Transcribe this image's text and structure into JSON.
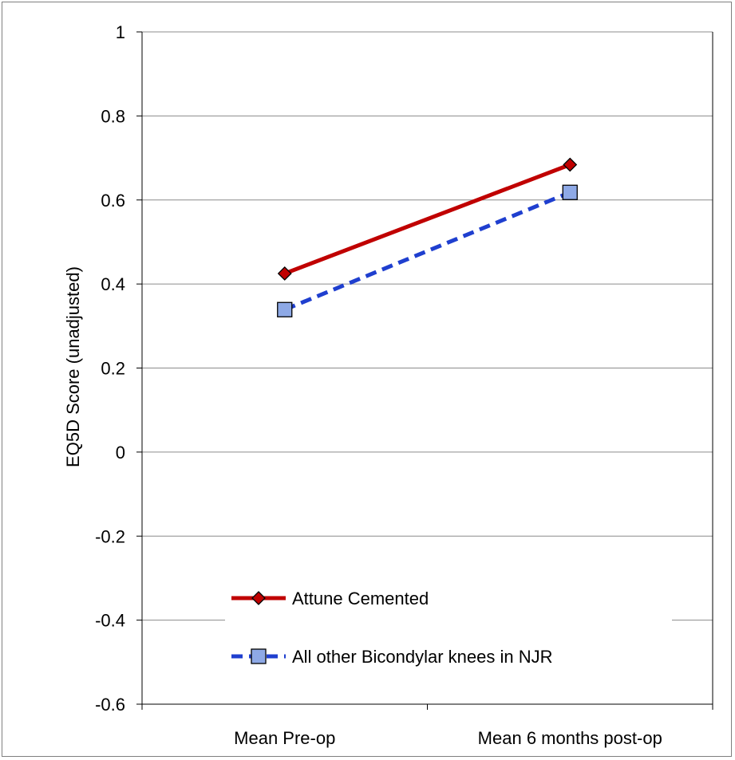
{
  "chart_data": {
    "type": "line",
    "title": "",
    "xlabel": "",
    "ylabel": "EQ5D Score (unadjusted)",
    "categories": [
      "Mean Pre-op",
      "Mean 6 months post-op"
    ],
    "ylim": [
      -0.6,
      1
    ],
    "yticks": [
      -0.6,
      -0.4,
      -0.2,
      0,
      0.2,
      0.4,
      0.6,
      0.8,
      1
    ],
    "ytick_labels": [
      "-0.6",
      "-0.4",
      "-0.2",
      "0",
      "0.2",
      "0.4",
      "0.6",
      "0.8",
      "1"
    ],
    "grid": "horizontal",
    "legend_position": "lower-left inside plot",
    "series": [
      {
        "name": "Attune Cemented",
        "values": [
          0.425,
          0.684
        ],
        "color": "#c00000",
        "marker_color": "#c00000",
        "line_style": "solid",
        "marker": "diamond"
      },
      {
        "name": "All other Bicondylar knees in NJR",
        "values": [
          0.339,
          0.618
        ],
        "color": "#1f3fcf",
        "marker_color": "#8ea9e6",
        "line_style": "dashed",
        "marker": "square"
      }
    ]
  }
}
